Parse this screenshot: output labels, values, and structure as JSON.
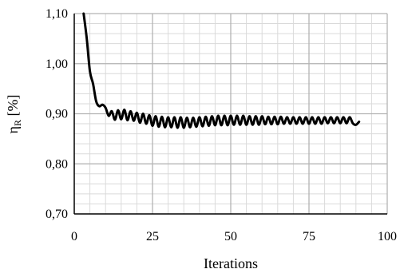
{
  "chart_data": {
    "type": "line",
    "xlabel": "Iterations",
    "ylabel_main": "η",
    "ylabel_sub": "R",
    "ylabel_unit": " [%]",
    "xlim": [
      0,
      100
    ],
    "ylim": [
      0.7,
      1.1
    ],
    "x_ticks": [
      0,
      25,
      50,
      75,
      100
    ],
    "x_tick_labels": [
      "0",
      "25",
      "50",
      "75",
      "100"
    ],
    "y_ticks": [
      0.7,
      0.8,
      0.9,
      1.0,
      1.1
    ],
    "y_tick_labels": [
      "0,70",
      "0,80",
      "0,90",
      "1,00",
      "1,10"
    ],
    "x_minor_step": 5,
    "y_minor_step": 0.02,
    "grid": true,
    "series": [
      {
        "color": "#000000",
        "x": [
          3,
          4,
          5,
          6,
          7,
          8,
          9,
          10,
          11,
          12,
          13,
          14,
          15,
          16,
          17,
          18,
          19,
          20,
          21,
          22,
          23,
          24,
          25,
          26,
          27,
          28,
          29,
          30,
          31,
          32,
          33,
          34,
          35,
          36,
          37,
          38,
          39,
          40,
          41,
          42,
          43,
          44,
          45,
          46,
          47,
          48,
          49,
          50,
          51,
          52,
          53,
          54,
          55,
          56,
          57,
          58,
          59,
          60,
          61,
          62,
          63,
          64,
          65,
          66,
          67,
          68,
          69,
          70,
          71,
          72,
          73,
          74,
          75,
          76,
          77,
          78,
          79,
          80,
          81,
          82,
          83,
          84,
          85,
          86,
          87,
          88,
          89,
          90,
          91
        ],
        "values": [
          1.1,
          1.05,
          0.985,
          0.96,
          0.925,
          0.915,
          0.918,
          0.912,
          0.896,
          0.905,
          0.888,
          0.907,
          0.889,
          0.908,
          0.887,
          0.905,
          0.886,
          0.902,
          0.882,
          0.9,
          0.88,
          0.897,
          0.876,
          0.895,
          0.874,
          0.894,
          0.873,
          0.893,
          0.873,
          0.893,
          0.872,
          0.893,
          0.872,
          0.892,
          0.873,
          0.892,
          0.874,
          0.893,
          0.875,
          0.894,
          0.876,
          0.895,
          0.877,
          0.896,
          0.877,
          0.896,
          0.877,
          0.896,
          0.878,
          0.896,
          0.878,
          0.896,
          0.878,
          0.895,
          0.878,
          0.895,
          0.878,
          0.895,
          0.879,
          0.894,
          0.879,
          0.894,
          0.879,
          0.894,
          0.88,
          0.893,
          0.88,
          0.893,
          0.88,
          0.893,
          0.88,
          0.893,
          0.88,
          0.893,
          0.88,
          0.893,
          0.88,
          0.893,
          0.881,
          0.893,
          0.881,
          0.893,
          0.881,
          0.893,
          0.881,
          0.893,
          0.881,
          0.878,
          0.884
        ]
      }
    ]
  }
}
